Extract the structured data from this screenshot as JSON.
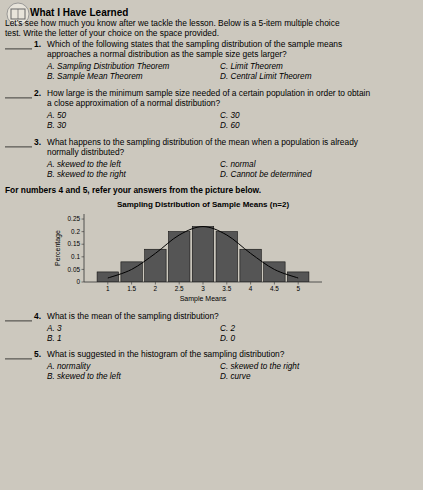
{
  "chart_data": {
    "type": "bar",
    "title": "Sampling Distribution of Sample Means (n=2)",
    "xlabel": "Sample Means",
    "ylabel": "Percentage",
    "x": [
      1.0,
      1.5,
      2.0,
      2.5,
      3.0,
      3.5,
      4.0,
      4.5,
      5.0
    ],
    "series": [
      {
        "type": "bar",
        "color": "#555555",
        "values": [
          0.04,
          0.08,
          0.13,
          0.2,
          0.22,
          0.2,
          0.13,
          0.08,
          0.04
        ]
      },
      {
        "type": "line",
        "color": "#000000",
        "values": [
          0.0157,
          0.0498,
          0.1136,
          0.1865,
          0.22,
          0.1865,
          0.1136,
          0.0498,
          0.0157
        ]
      }
    ],
    "xlim": [
      0.5,
      5.5
    ],
    "ylim": [
      0,
      0.27
    ],
    "xticks": [
      1,
      1.5,
      2,
      2.5,
      3,
      3.5,
      4,
      4.5,
      5
    ],
    "yticks": [
      0,
      0.05,
      0.1,
      0.15,
      0.2,
      0.25
    ],
    "grid": false,
    "annotations": [
      "What I Have Learned",
      "Let’s see how much you know after we tackle the lesson. Below is a 5-item multiple choice",
      "test. Write the letter of your choice on the space provided.",
      "1.",
      "Which of the following states that the sampling distribution of the sample means",
      "approaches a normal distribution as the sample size gets larger?",
      "A. Sampling Distribution Theorem",
      "B. Sample Mean Theorem",
      "C. Limit Theorem",
      "D. Central Limit Theorem",
      "2.",
      "How large is the minimum sample size needed of a certain population in order to obtain",
      "a close approximation of a normal distribution?",
      "A. 50",
      "B. 30",
      "C. 30",
      "D. 60",
      "3.",
      "What happens to the sampling distribution of the mean when a population is already",
      "normally distributed?",
      "A. skewed to the left",
      "B. skewed to the right",
      "C. normal",
      "D. Cannot be determined",
      "For numbers 4 and 5, refer your answers from the picture below.",
      "4.",
      "What is the mean of the sampling distribution?",
      "A. 3",
      "B. 1",
      "C. 2",
      "D. 0",
      "5.",
      "What is suggested in the histogram of the sampling distribution?",
      "A.  normality",
      "B.  skewed to the left",
      "C. skewed to the right",
      "D. curve"
    ]
  }
}
